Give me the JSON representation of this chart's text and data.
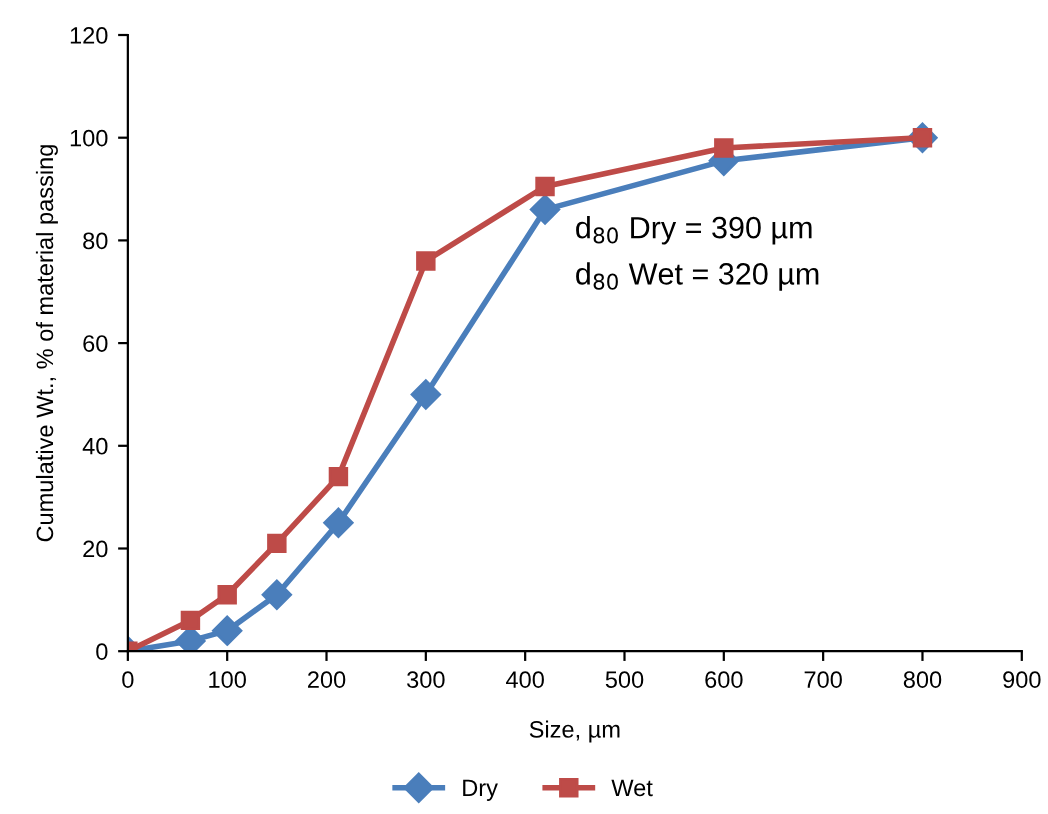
{
  "chart_data": {
    "type": "line",
    "xlabel": "Size, µm",
    "ylabel": "Cumulative Wt., % of material passing",
    "xlim": [
      0,
      900
    ],
    "xticks": [
      0,
      100,
      200,
      300,
      400,
      500,
      600,
      700,
      800,
      900
    ],
    "ylim": [
      0,
      120
    ],
    "yticks": [
      0,
      20,
      40,
      60,
      80,
      100,
      120
    ],
    "grid": false,
    "legend": "bottom",
    "line_style": "solid",
    "series": [
      {
        "name": "Dry",
        "color": "#4a7ebb",
        "marker": "diamond",
        "x": [
          0,
          63,
          100,
          150,
          212,
          300,
          420,
          600,
          800
        ],
        "values": [
          0,
          2,
          4,
          11,
          25,
          50,
          86,
          95.5,
          100
        ]
      },
      {
        "name": "Wet",
        "color": "#be4b48",
        "marker": "square",
        "x": [
          0,
          63,
          100,
          150,
          212,
          300,
          420,
          600,
          800
        ],
        "values": [
          0,
          6,
          11,
          21,
          34,
          76,
          90.5,
          98,
          100
        ]
      }
    ],
    "annotations": [
      "d$_{80}$ Dry = 390 µm",
      "d$_{80}$ Wet = 320 µm"
    ]
  }
}
